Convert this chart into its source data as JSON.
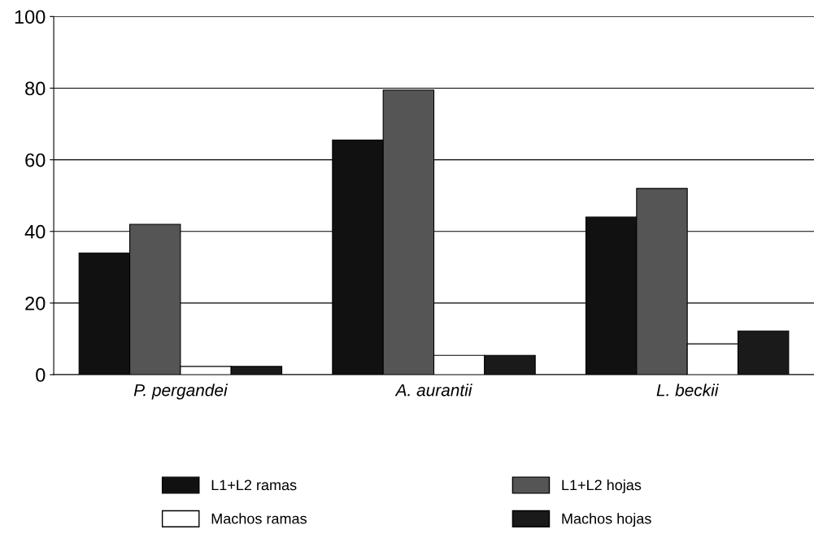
{
  "chart_data": {
    "type": "bar",
    "categories": [
      "P. pergandei",
      "A. aurantii",
      "L. beckii"
    ],
    "series": [
      {
        "name": "L1+L2 ramas",
        "color": "#111111",
        "values": [
          34,
          65.5,
          44
        ]
      },
      {
        "name": "L1+L2 hojas",
        "color": "#555555",
        "values": [
          42,
          79.5,
          52
        ]
      },
      {
        "name": "Machos ramas",
        "color": "#ffffff",
        "values": [
          2.3,
          5.4,
          8.6
        ]
      },
      {
        "name": "Machos hojas",
        "color": "#1a1a1a",
        "values": [
          2.3,
          5.4,
          12.2
        ]
      }
    ],
    "ylim": [
      0,
      100
    ],
    "yticks": [
      0,
      20,
      40,
      60,
      80,
      100
    ],
    "grid": "y",
    "legend": "bottom"
  }
}
